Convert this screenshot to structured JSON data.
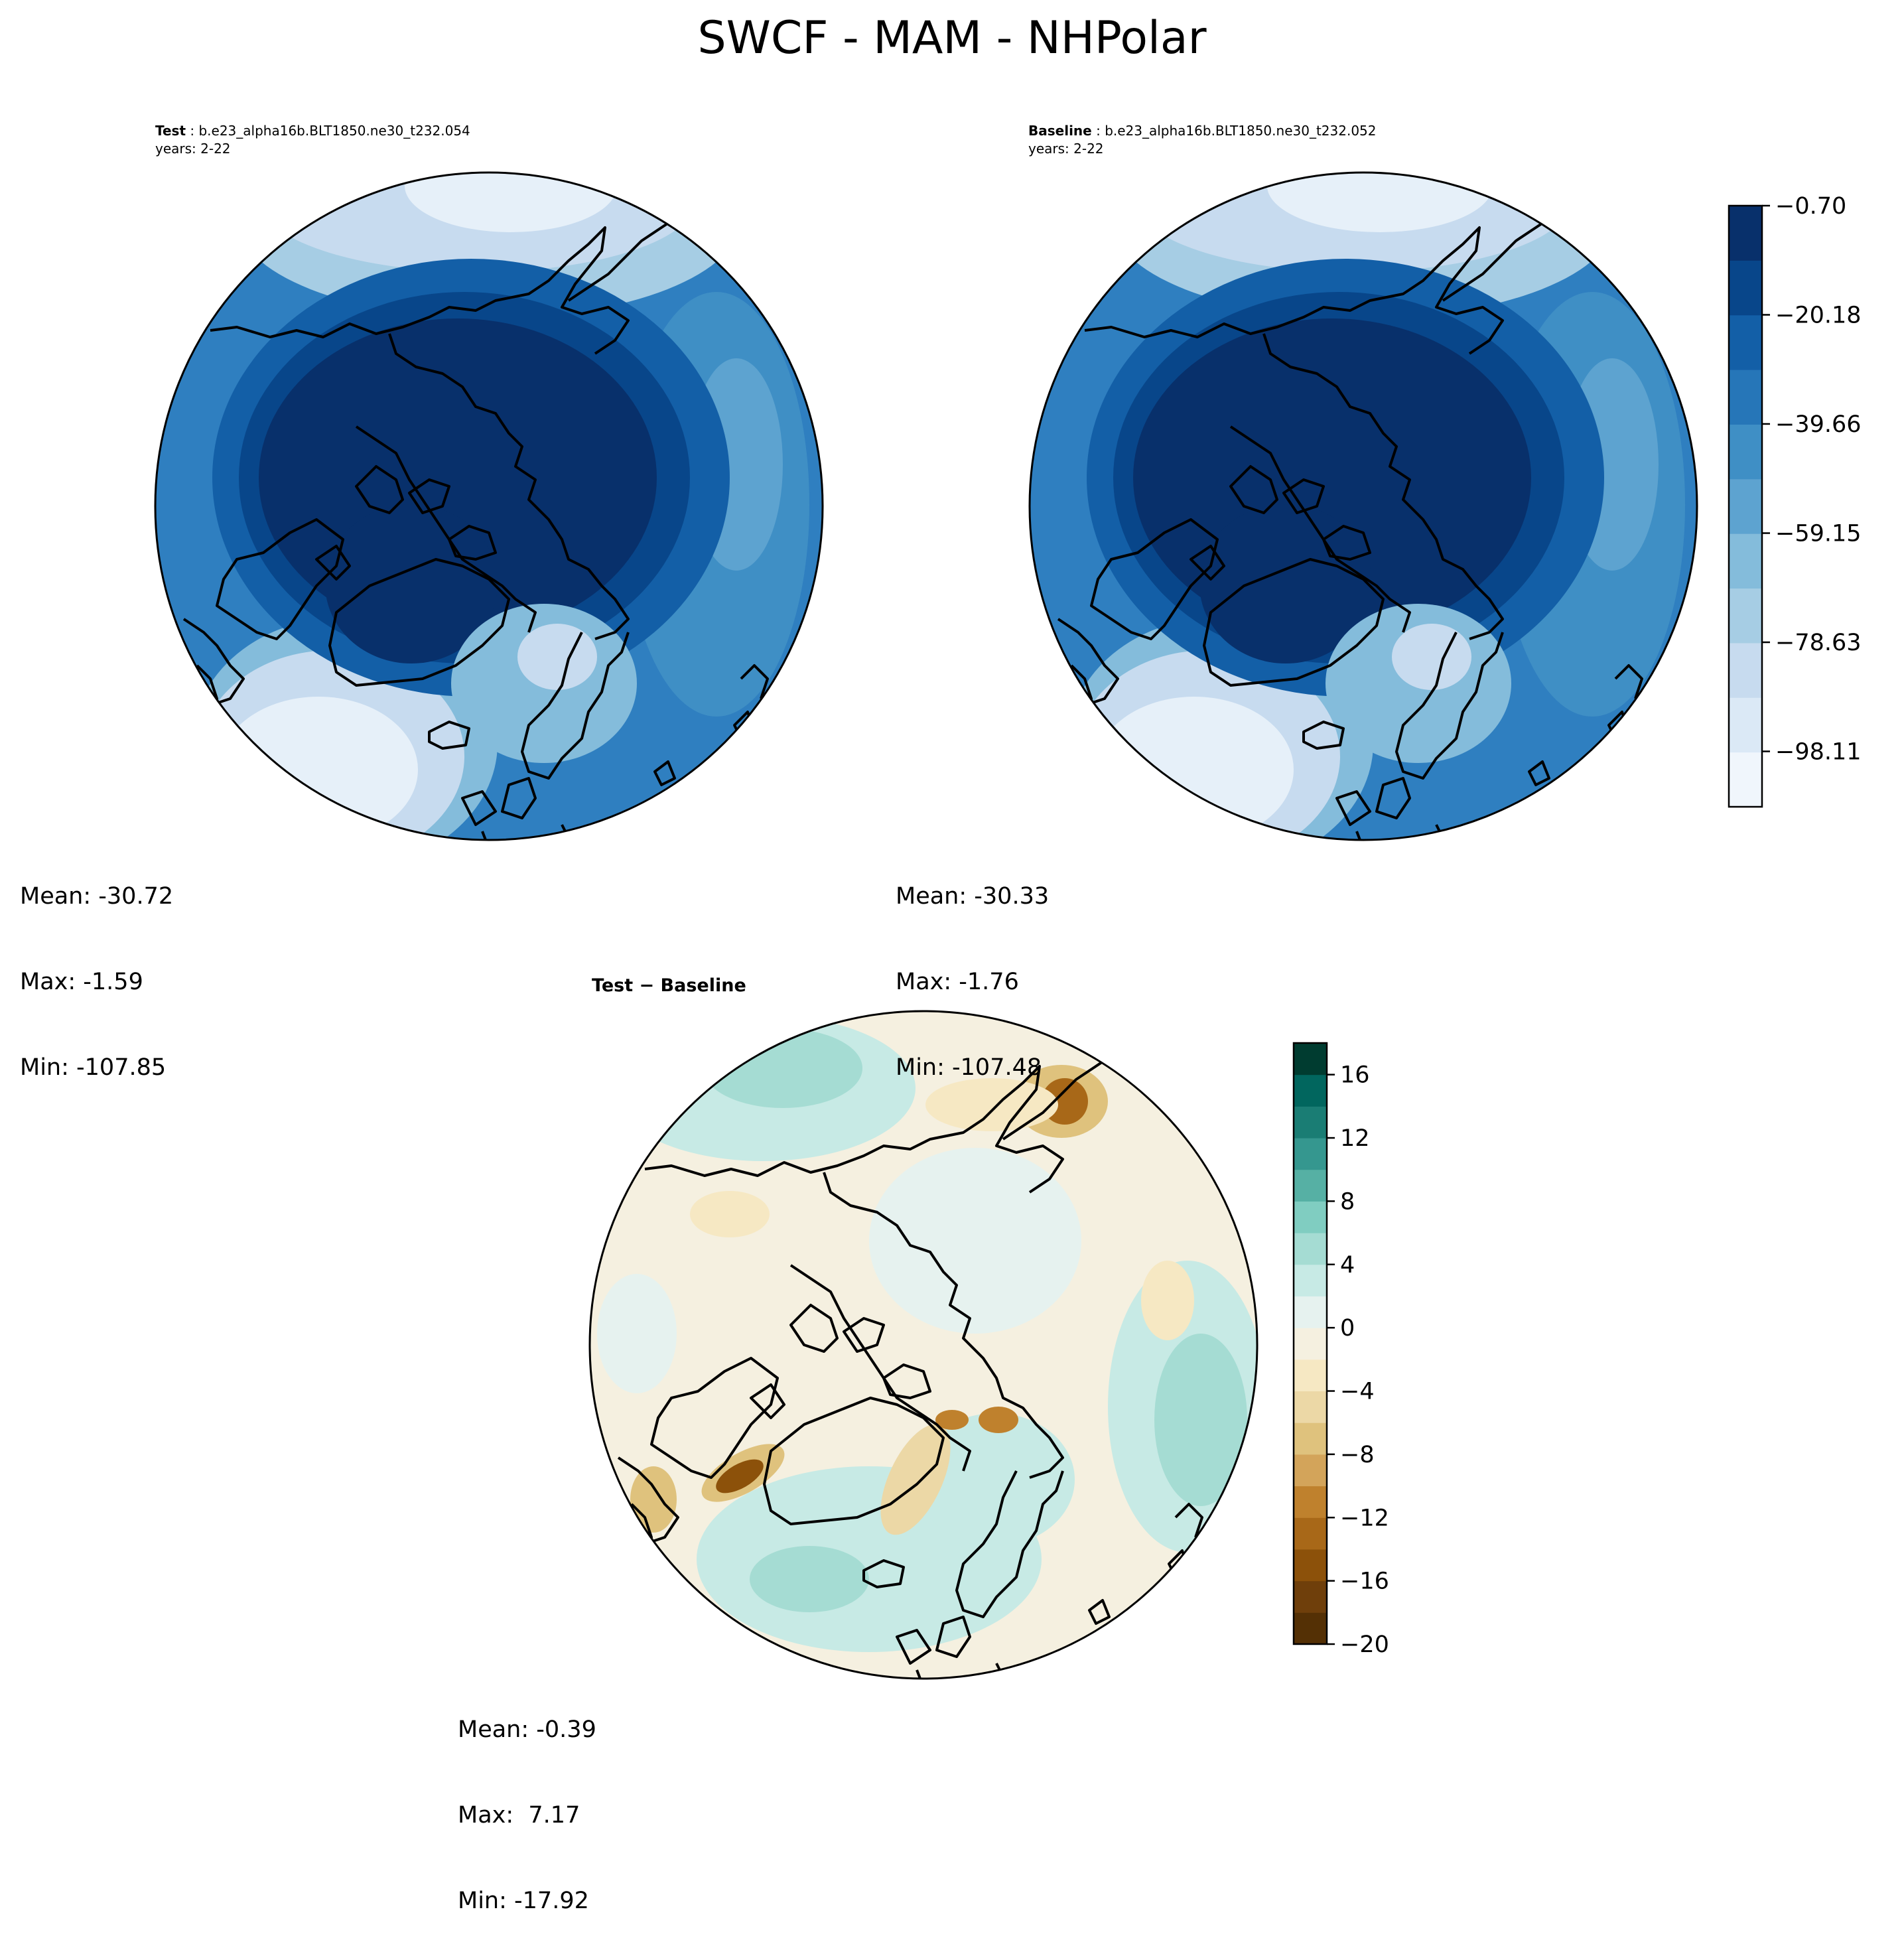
{
  "title": "SWCF - MAM - NHPolar",
  "panels": {
    "test": {
      "label": "Test",
      "case": "b.e23_alpha16b.BLT1850.ne30_t232.054",
      "years": "years: 2-22",
      "stats": {
        "mean": "Mean: -30.72",
        "max": "Max: -1.59",
        "min": "Min: -107.85"
      }
    },
    "baseline": {
      "label": "Baseline",
      "case": "b.e23_alpha16b.BLT1850.ne30_t232.052",
      "years": "years: 2-22",
      "stats": {
        "mean": "Mean: -30.33",
        "max": "Max: -1.76",
        "min": "Min: -107.48"
      }
    },
    "diff": {
      "title": "Test − Baseline",
      "stats": {
        "mean": "Mean: -0.39",
        "max": "Max:  7.17",
        "min": "Min: -17.92"
      }
    }
  },
  "colorbar_main": {
    "ticks": [
      "−0.70",
      "−20.18",
      "−39.66",
      "−59.15",
      "−78.63",
      "−98.11"
    ],
    "tick_values": [
      -0.7,
      -20.18,
      -39.66,
      -59.15,
      -78.63,
      -98.11
    ],
    "range": [
      -108,
      -0.7
    ],
    "colors": [
      "#f0f6fc",
      "#dbe9f6",
      "#c7dbef",
      "#a6cde4",
      "#84bcdb",
      "#5da3d0",
      "#3f8fc5",
      "#2676b8",
      "#135fa7",
      "#08468a",
      "#08306b"
    ]
  },
  "colorbar_diff": {
    "ticks": [
      "16",
      "12",
      "8",
      "4",
      "0",
      "−4",
      "−8",
      "−12",
      "−16",
      "−20"
    ],
    "tick_values": [
      16,
      12,
      8,
      4,
      0,
      -4,
      -8,
      -12,
      -16,
      -20
    ],
    "range": [
      -20,
      18
    ],
    "colors": [
      "#543005",
      "#6f3f0b",
      "#8c510a",
      "#a86818",
      "#bf812d",
      "#d3a45a",
      "#dfc27d",
      "#ecd8a6",
      "#f6e8c3",
      "#f5f0e0",
      "#e6f2ef",
      "#c7eae5",
      "#a5dcd3",
      "#80cdc1",
      "#56b0a4",
      "#35978f",
      "#1a7d74",
      "#01665e",
      "#003c30"
    ]
  }
}
